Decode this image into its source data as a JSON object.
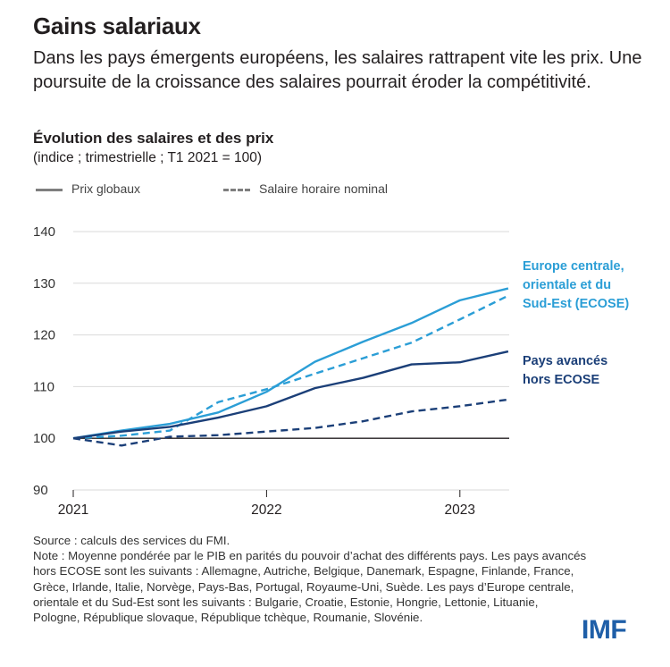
{
  "header": {
    "title": "Gains salariaux",
    "subtitle": "Dans les pays émergents européens, les salaires rattrapent vite les prix. Une poursuite de la croissance des salaires pourrait éroder la compétitivité."
  },
  "legend": {
    "solid_label": "Prix globaux",
    "dashed_label": "Salaire horaire nominal"
  },
  "footer": {
    "source": "Source : calculs des services du FMI.",
    "note": "Note : Moyenne pondérée par le PIB en parités du pouvoir d’achat des différents pays. Les pays avancés hors ECOSE sont les suivants : Allemagne, Autriche, Belgique, Danemark, Espagne, Finlande, France, Grèce, Irlande, Italie, Norvège, Pays-Bas, Portugal, Royaume-Uni, Suède. Les pays d’Europe centrale, orientale et du Sud-Est sont les suivants : Bulgarie, Croatie, Estonie, Hongrie, Lettonie, Lituanie, Pologne, République slovaque, République tchèque, Roumanie, Slovénie."
  },
  "logo": "IMF",
  "colors": {
    "ecose": "#2b9ed6",
    "advanced": "#1b3f78",
    "grid": "#d9d9d9",
    "baseline": "#231f20",
    "legend_gray": "#808080"
  },
  "chart_data": {
    "type": "line",
    "title": "Évolution des salaires et des prix",
    "subtitle": "(indice ; trimestrielle ; T1 2021 = 100)",
    "x": [
      "T1 2021",
      "T2 2021",
      "T3 2021",
      "T4 2021",
      "T1 2022",
      "T2 2022",
      "T3 2022",
      "T4 2022",
      "T1 2023",
      "T2 2023"
    ],
    "xticks": [
      "2021",
      "2022",
      "2023"
    ],
    "ylim": [
      90,
      140
    ],
    "yticks": [
      90,
      100,
      110,
      120,
      130,
      140
    ],
    "grid": true,
    "series": [
      {
        "group": "Europe centrale, orientale et du Sud-Est (ECOSE)",
        "measure": "Prix globaux",
        "style": "solid",
        "color": "#2b9ed6",
        "values": [
          100,
          101.5,
          102.8,
          105,
          109,
          114.8,
          118.7,
          122.3,
          126.7,
          129
        ]
      },
      {
        "group": "Europe centrale, orientale et du Sud-Est (ECOSE)",
        "measure": "Salaire horaire nominal",
        "style": "dashed",
        "color": "#2b9ed6",
        "values": [
          100,
          100.5,
          101.5,
          107,
          109.5,
          112.5,
          115.5,
          118.5,
          123,
          127.6
        ]
      },
      {
        "group": "Pays avancés hors ECOSE",
        "measure": "Prix globaux",
        "style": "solid",
        "color": "#1b3f78",
        "values": [
          100,
          101.3,
          102.2,
          104,
          106.2,
          109.7,
          111.7,
          114.3,
          114.7,
          116.8
        ]
      },
      {
        "group": "Pays avancés hors ECOSE",
        "measure": "Salaire horaire nominal",
        "style": "dashed",
        "color": "#1b3f78",
        "values": [
          100,
          98.6,
          100.3,
          100.6,
          101.3,
          102,
          103.3,
          105.2,
          106.2,
          107.5
        ]
      }
    ],
    "annotations": [
      {
        "text": "Europe centrale, orientale et du Sud-Est (ECOSE)",
        "lines": [
          "Europe centrale,",
          "orientale et du",
          "Sud-Est (ECOSE)"
        ],
        "color": "#2b9ed6"
      },
      {
        "text": "Pays avancés hors ECOSE",
        "lines": [
          "Pays avancés",
          "hors ECOSE"
        ],
        "color": "#1b3f78"
      }
    ]
  }
}
